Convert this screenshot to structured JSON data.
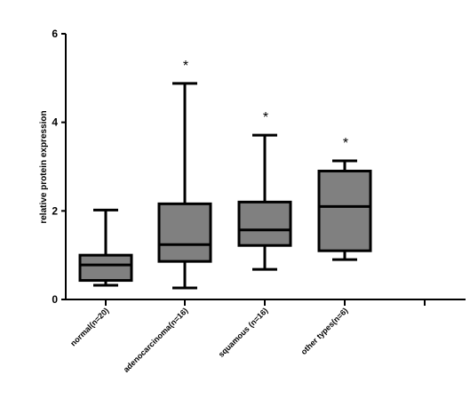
{
  "chart_data": {
    "type": "box",
    "title": "",
    "xlabel": "",
    "ylabel": "relative protein expression",
    "ylim": [
      0,
      6
    ],
    "yticks": [
      "0",
      "2",
      "4",
      "6"
    ],
    "grid": false,
    "categories": [
      "normal(n=20)",
      "adenocarcinoma(n=16)",
      "squamous (n=16)",
      "other types(n=6)"
    ],
    "boxes": [
      {
        "min": 0.32,
        "q1": 0.43,
        "median": 0.78,
        "q3": 1.0,
        "max": 2.02,
        "annotation": ""
      },
      {
        "min": 0.26,
        "q1": 0.86,
        "median": 1.24,
        "q3": 2.16,
        "max": 4.88,
        "annotation": "*"
      },
      {
        "min": 0.68,
        "q1": 1.22,
        "median": 1.57,
        "q3": 2.2,
        "max": 3.71,
        "annotation": "*"
      },
      {
        "min": 0.9,
        "q1": 1.1,
        "median": 2.1,
        "q3": 2.9,
        "max": 3.13,
        "annotation": "*"
      }
    ]
  },
  "colors": {
    "box_fill": "#808080",
    "line": "#000000"
  }
}
